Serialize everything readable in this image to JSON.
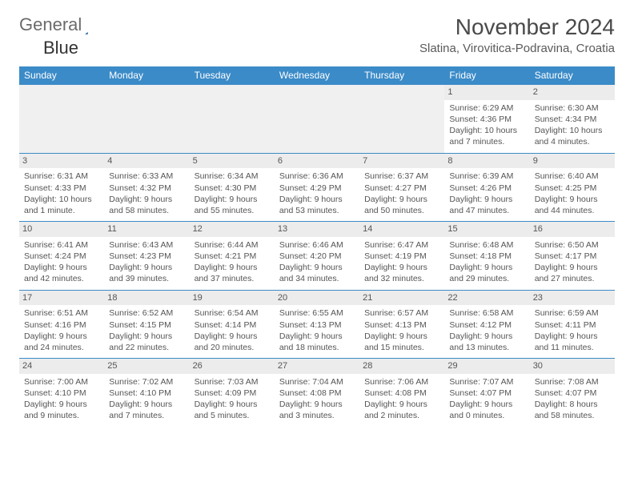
{
  "brand": {
    "part1": "General",
    "part2": "Blue"
  },
  "title": "November 2024",
  "location": "Slatina, Virovitica-Podravina, Croatia",
  "colors": {
    "header_bg": "#3b8bc8",
    "header_text": "#ffffff",
    "daynum_bg": "#ececec",
    "border": "#3b8bc8",
    "text": "#555555",
    "brand_gray": "#6b6b6b",
    "brand_blue": "#2b7cc0"
  },
  "day_headers": [
    "Sunday",
    "Monday",
    "Tuesday",
    "Wednesday",
    "Thursday",
    "Friday",
    "Saturday"
  ],
  "weeks": [
    [
      {
        "day": "",
        "lines": []
      },
      {
        "day": "",
        "lines": []
      },
      {
        "day": "",
        "lines": []
      },
      {
        "day": "",
        "lines": []
      },
      {
        "day": "",
        "lines": []
      },
      {
        "day": "1",
        "lines": [
          "Sunrise: 6:29 AM",
          "Sunset: 4:36 PM",
          "Daylight: 10 hours and 7 minutes."
        ]
      },
      {
        "day": "2",
        "lines": [
          "Sunrise: 6:30 AM",
          "Sunset: 4:34 PM",
          "Daylight: 10 hours and 4 minutes."
        ]
      }
    ],
    [
      {
        "day": "3",
        "lines": [
          "Sunrise: 6:31 AM",
          "Sunset: 4:33 PM",
          "Daylight: 10 hours and 1 minute."
        ]
      },
      {
        "day": "4",
        "lines": [
          "Sunrise: 6:33 AM",
          "Sunset: 4:32 PM",
          "Daylight: 9 hours and 58 minutes."
        ]
      },
      {
        "day": "5",
        "lines": [
          "Sunrise: 6:34 AM",
          "Sunset: 4:30 PM",
          "Daylight: 9 hours and 55 minutes."
        ]
      },
      {
        "day": "6",
        "lines": [
          "Sunrise: 6:36 AM",
          "Sunset: 4:29 PM",
          "Daylight: 9 hours and 53 minutes."
        ]
      },
      {
        "day": "7",
        "lines": [
          "Sunrise: 6:37 AM",
          "Sunset: 4:27 PM",
          "Daylight: 9 hours and 50 minutes."
        ]
      },
      {
        "day": "8",
        "lines": [
          "Sunrise: 6:39 AM",
          "Sunset: 4:26 PM",
          "Daylight: 9 hours and 47 minutes."
        ]
      },
      {
        "day": "9",
        "lines": [
          "Sunrise: 6:40 AM",
          "Sunset: 4:25 PM",
          "Daylight: 9 hours and 44 minutes."
        ]
      }
    ],
    [
      {
        "day": "10",
        "lines": [
          "Sunrise: 6:41 AM",
          "Sunset: 4:24 PM",
          "Daylight: 9 hours and 42 minutes."
        ]
      },
      {
        "day": "11",
        "lines": [
          "Sunrise: 6:43 AM",
          "Sunset: 4:23 PM",
          "Daylight: 9 hours and 39 minutes."
        ]
      },
      {
        "day": "12",
        "lines": [
          "Sunrise: 6:44 AM",
          "Sunset: 4:21 PM",
          "Daylight: 9 hours and 37 minutes."
        ]
      },
      {
        "day": "13",
        "lines": [
          "Sunrise: 6:46 AM",
          "Sunset: 4:20 PM",
          "Daylight: 9 hours and 34 minutes."
        ]
      },
      {
        "day": "14",
        "lines": [
          "Sunrise: 6:47 AM",
          "Sunset: 4:19 PM",
          "Daylight: 9 hours and 32 minutes."
        ]
      },
      {
        "day": "15",
        "lines": [
          "Sunrise: 6:48 AM",
          "Sunset: 4:18 PM",
          "Daylight: 9 hours and 29 minutes."
        ]
      },
      {
        "day": "16",
        "lines": [
          "Sunrise: 6:50 AM",
          "Sunset: 4:17 PM",
          "Daylight: 9 hours and 27 minutes."
        ]
      }
    ],
    [
      {
        "day": "17",
        "lines": [
          "Sunrise: 6:51 AM",
          "Sunset: 4:16 PM",
          "Daylight: 9 hours and 24 minutes."
        ]
      },
      {
        "day": "18",
        "lines": [
          "Sunrise: 6:52 AM",
          "Sunset: 4:15 PM",
          "Daylight: 9 hours and 22 minutes."
        ]
      },
      {
        "day": "19",
        "lines": [
          "Sunrise: 6:54 AM",
          "Sunset: 4:14 PM",
          "Daylight: 9 hours and 20 minutes."
        ]
      },
      {
        "day": "20",
        "lines": [
          "Sunrise: 6:55 AM",
          "Sunset: 4:13 PM",
          "Daylight: 9 hours and 18 minutes."
        ]
      },
      {
        "day": "21",
        "lines": [
          "Sunrise: 6:57 AM",
          "Sunset: 4:13 PM",
          "Daylight: 9 hours and 15 minutes."
        ]
      },
      {
        "day": "22",
        "lines": [
          "Sunrise: 6:58 AM",
          "Sunset: 4:12 PM",
          "Daylight: 9 hours and 13 minutes."
        ]
      },
      {
        "day": "23",
        "lines": [
          "Sunrise: 6:59 AM",
          "Sunset: 4:11 PM",
          "Daylight: 9 hours and 11 minutes."
        ]
      }
    ],
    [
      {
        "day": "24",
        "lines": [
          "Sunrise: 7:00 AM",
          "Sunset: 4:10 PM",
          "Daylight: 9 hours and 9 minutes."
        ]
      },
      {
        "day": "25",
        "lines": [
          "Sunrise: 7:02 AM",
          "Sunset: 4:10 PM",
          "Daylight: 9 hours and 7 minutes."
        ]
      },
      {
        "day": "26",
        "lines": [
          "Sunrise: 7:03 AM",
          "Sunset: 4:09 PM",
          "Daylight: 9 hours and 5 minutes."
        ]
      },
      {
        "day": "27",
        "lines": [
          "Sunrise: 7:04 AM",
          "Sunset: 4:08 PM",
          "Daylight: 9 hours and 3 minutes."
        ]
      },
      {
        "day": "28",
        "lines": [
          "Sunrise: 7:06 AM",
          "Sunset: 4:08 PM",
          "Daylight: 9 hours and 2 minutes."
        ]
      },
      {
        "day": "29",
        "lines": [
          "Sunrise: 7:07 AM",
          "Sunset: 4:07 PM",
          "Daylight: 9 hours and 0 minutes."
        ]
      },
      {
        "day": "30",
        "lines": [
          "Sunrise: 7:08 AM",
          "Sunset: 4:07 PM",
          "Daylight: 8 hours and 58 minutes."
        ]
      }
    ]
  ]
}
